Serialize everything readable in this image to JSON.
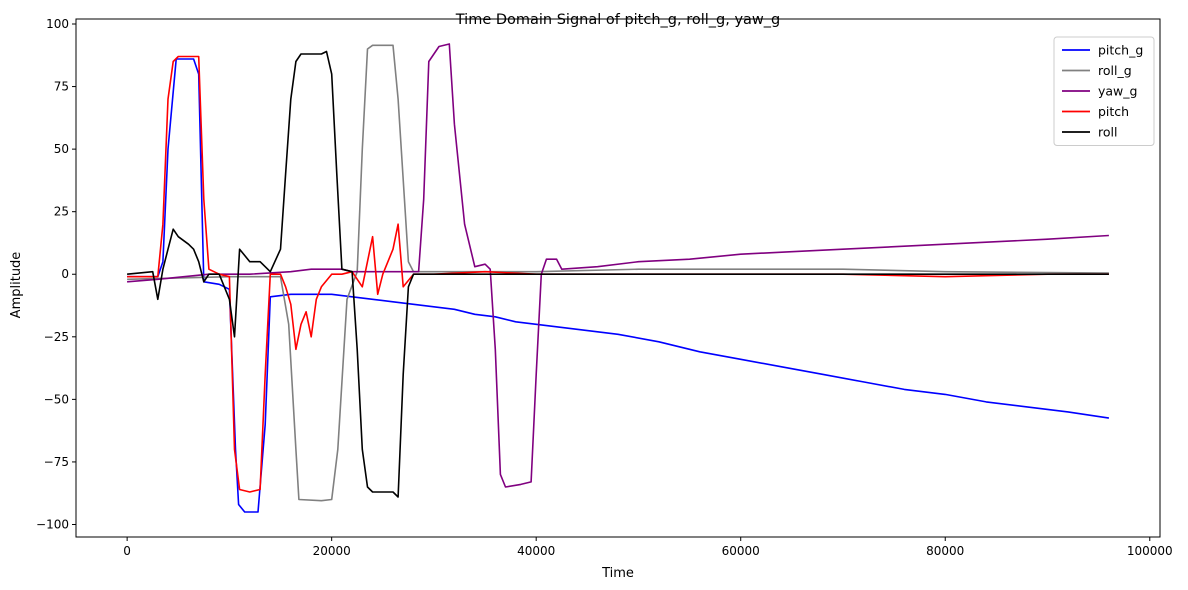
{
  "chart_data": {
    "type": "line",
    "title": "Time Domain Signal of pitch_g, roll_g, yaw_g",
    "xlabel": "Time",
    "ylabel": "Amplitude",
    "xlim": [
      -5000,
      101000
    ],
    "ylim": [
      -105,
      102
    ],
    "xticks": [
      0,
      20000,
      40000,
      60000,
      80000,
      100000
    ],
    "yticks": [
      -100,
      -75,
      -50,
      -25,
      0,
      25,
      50,
      75,
      100
    ],
    "grid": false,
    "legend_position": "top-right",
    "series": [
      {
        "name": "pitch_g",
        "color": "#0000ff",
        "points": [
          [
            0,
            -1
          ],
          [
            3000,
            -1
          ],
          [
            3500,
            5
          ],
          [
            4000,
            50
          ],
          [
            4800,
            86
          ],
          [
            5000,
            86
          ],
          [
            6500,
            86
          ],
          [
            7000,
            80
          ],
          [
            7500,
            -3
          ],
          [
            9000,
            -4
          ],
          [
            10000,
            -6
          ],
          [
            10600,
            -70
          ],
          [
            10900,
            -92
          ],
          [
            11500,
            -95
          ],
          [
            12800,
            -95
          ],
          [
            13500,
            -60
          ],
          [
            14000,
            -9
          ],
          [
            16000,
            -8
          ],
          [
            18000,
            -8
          ],
          [
            20000,
            -8
          ],
          [
            22000,
            -9
          ],
          [
            24000,
            -10
          ],
          [
            26000,
            -11
          ],
          [
            28000,
            -12
          ],
          [
            30000,
            -13
          ],
          [
            32000,
            -14
          ],
          [
            34000,
            -16
          ],
          [
            36000,
            -17
          ],
          [
            38000,
            -19
          ],
          [
            40000,
            -20
          ],
          [
            44000,
            -22
          ],
          [
            48000,
            -24
          ],
          [
            52000,
            -27
          ],
          [
            56000,
            -31
          ],
          [
            60000,
            -34
          ],
          [
            64000,
            -37
          ],
          [
            68000,
            -40
          ],
          [
            72000,
            -43
          ],
          [
            76000,
            -46
          ],
          [
            80000,
            -48
          ],
          [
            84000,
            -51
          ],
          [
            88000,
            -53
          ],
          [
            92000,
            -55
          ],
          [
            96000,
            -57.5
          ]
        ]
      },
      {
        "name": "roll_g",
        "color": "#808080",
        "points": [
          [
            0,
            -2
          ],
          [
            10000,
            -1
          ],
          [
            15000,
            -1
          ],
          [
            15800,
            -20
          ],
          [
            16500,
            -70
          ],
          [
            16800,
            -90
          ],
          [
            19000,
            -90.5
          ],
          [
            20000,
            -90
          ],
          [
            20600,
            -70
          ],
          [
            21500,
            -10
          ],
          [
            22500,
            1
          ],
          [
            23000,
            50
          ],
          [
            23500,
            90
          ],
          [
            24000,
            91.5
          ],
          [
            26000,
            91.5
          ],
          [
            26500,
            70
          ],
          [
            27500,
            5
          ],
          [
            28000,
            1
          ],
          [
            35000,
            1
          ],
          [
            40000,
            1
          ],
          [
            50000,
            2
          ],
          [
            60000,
            2
          ],
          [
            70000,
            2
          ],
          [
            80000,
            1
          ],
          [
            96000,
            0.5
          ]
        ]
      },
      {
        "name": "yaw_g",
        "color": "#800080",
        "points": [
          [
            0,
            -3
          ],
          [
            3000,
            -2
          ],
          [
            8000,
            0
          ],
          [
            12000,
            0
          ],
          [
            16000,
            1
          ],
          [
            18000,
            2
          ],
          [
            21000,
            2
          ],
          [
            22000,
            1
          ],
          [
            28500,
            1
          ],
          [
            29000,
            30
          ],
          [
            29500,
            85
          ],
          [
            30500,
            91
          ],
          [
            31500,
            92
          ],
          [
            32000,
            60
          ],
          [
            33000,
            20
          ],
          [
            34000,
            3
          ],
          [
            35000,
            4
          ],
          [
            35500,
            2
          ],
          [
            36000,
            -30
          ],
          [
            36500,
            -80
          ],
          [
            37000,
            -85
          ],
          [
            38500,
            -84
          ],
          [
            39500,
            -83
          ],
          [
            40000,
            -40
          ],
          [
            40500,
            0
          ],
          [
            41000,
            6
          ],
          [
            42000,
            6
          ],
          [
            42500,
            2
          ],
          [
            46000,
            3
          ],
          [
            50000,
            5
          ],
          [
            55000,
            6
          ],
          [
            60000,
            8
          ],
          [
            65000,
            9
          ],
          [
            70000,
            10
          ],
          [
            75000,
            11
          ],
          [
            80000,
            12
          ],
          [
            85000,
            13
          ],
          [
            90000,
            14
          ],
          [
            96000,
            15.5
          ]
        ]
      },
      {
        "name": "pitch",
        "color": "#ff0000",
        "points": [
          [
            0,
            -1
          ],
          [
            3000,
            -1
          ],
          [
            3500,
            20
          ],
          [
            4000,
            70
          ],
          [
            4500,
            85
          ],
          [
            5000,
            87
          ],
          [
            7000,
            87
          ],
          [
            7500,
            30
          ],
          [
            8000,
            2
          ],
          [
            9000,
            0
          ],
          [
            10000,
            -1
          ],
          [
            10500,
            -70
          ],
          [
            11000,
            -86
          ],
          [
            12000,
            -87
          ],
          [
            13000,
            -86
          ],
          [
            13500,
            -40
          ],
          [
            14000,
            0
          ],
          [
            15000,
            0
          ],
          [
            15500,
            -5
          ],
          [
            16000,
            -12
          ],
          [
            16500,
            -30
          ],
          [
            17000,
            -20
          ],
          [
            17500,
            -15
          ],
          [
            18000,
            -25
          ],
          [
            18500,
            -10
          ],
          [
            19000,
            -5
          ],
          [
            20000,
            0
          ],
          [
            21000,
            0
          ],
          [
            22000,
            1
          ],
          [
            23000,
            -5
          ],
          [
            24000,
            15
          ],
          [
            24500,
            -8
          ],
          [
            25000,
            0
          ],
          [
            26000,
            10
          ],
          [
            26500,
            20
          ],
          [
            27000,
            -5
          ],
          [
            28000,
            0
          ],
          [
            30000,
            0
          ],
          [
            35000,
            1
          ],
          [
            40000,
            0
          ],
          [
            50000,
            0
          ],
          [
            60000,
            0
          ],
          [
            70000,
            0
          ],
          [
            80000,
            -1
          ],
          [
            90000,
            0
          ],
          [
            96000,
            0
          ]
        ]
      },
      {
        "name": "roll",
        "color": "#000000",
        "points": [
          [
            0,
            0
          ],
          [
            2500,
            1
          ],
          [
            3000,
            -10
          ],
          [
            3500,
            2
          ],
          [
            4000,
            10
          ],
          [
            4500,
            18
          ],
          [
            5000,
            15
          ],
          [
            6000,
            12
          ],
          [
            6500,
            10
          ],
          [
            7000,
            5
          ],
          [
            7500,
            -3
          ],
          [
            8000,
            0
          ],
          [
            9000,
            0
          ],
          [
            10000,
            -10
          ],
          [
            10500,
            -25
          ],
          [
            11000,
            10
          ],
          [
            12000,
            5
          ],
          [
            13000,
            5
          ],
          [
            13500,
            3
          ],
          [
            14000,
            1
          ],
          [
            15000,
            10
          ],
          [
            15500,
            40
          ],
          [
            16000,
            70
          ],
          [
            16500,
            85
          ],
          [
            17000,
            88
          ],
          [
            18000,
            88
          ],
          [
            19000,
            88
          ],
          [
            19500,
            89
          ],
          [
            20000,
            80
          ],
          [
            20500,
            40
          ],
          [
            21000,
            2
          ],
          [
            22000,
            1
          ],
          [
            22500,
            -30
          ],
          [
            23000,
            -70
          ],
          [
            23500,
            -85
          ],
          [
            24000,
            -87
          ],
          [
            26000,
            -87
          ],
          [
            26500,
            -89
          ],
          [
            27000,
            -40
          ],
          [
            27500,
            -5
          ],
          [
            28000,
            0
          ],
          [
            30000,
            0
          ],
          [
            35000,
            0
          ],
          [
            40000,
            0
          ],
          [
            50000,
            0
          ],
          [
            60000,
            0
          ],
          [
            70000,
            0
          ],
          [
            80000,
            0
          ],
          [
            90000,
            0
          ],
          [
            96000,
            0
          ]
        ]
      }
    ]
  }
}
